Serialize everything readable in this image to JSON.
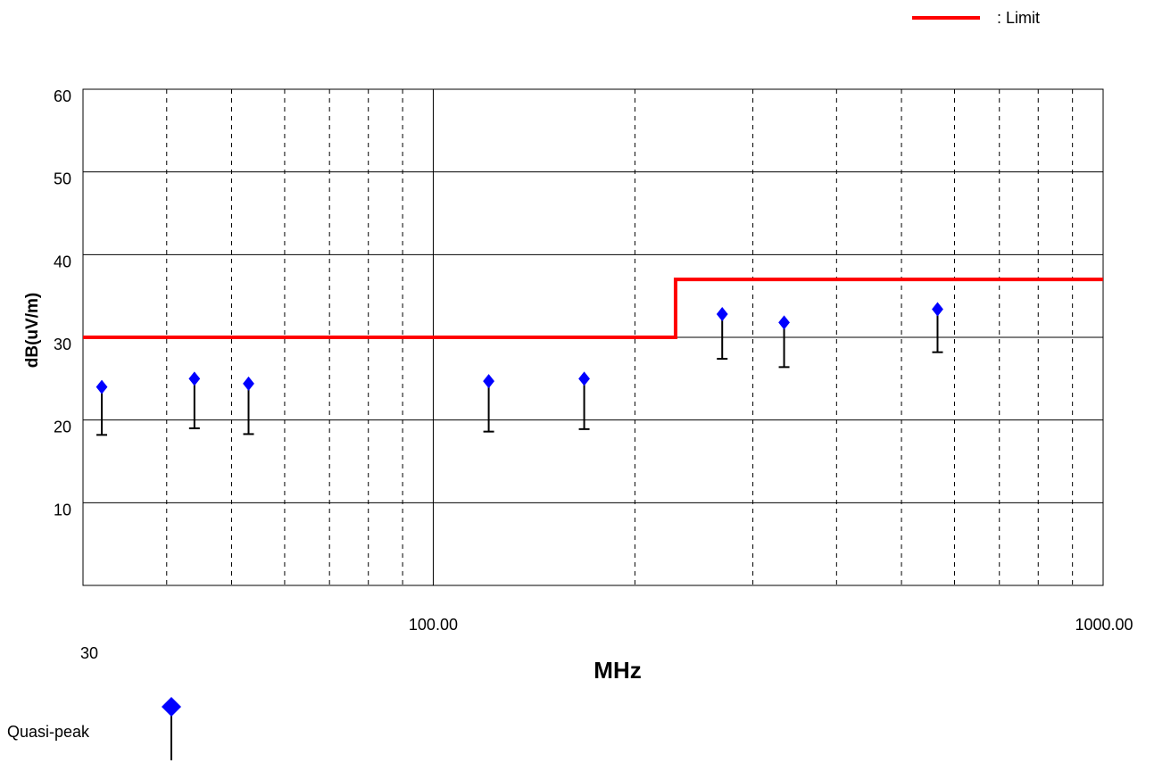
{
  "chart_data": {
    "type": "scatter",
    "xlabel": "MHz",
    "ylabel": "dB(uV/m)",
    "x_scale": "log",
    "xlim": [
      30,
      1000
    ],
    "ylim": [
      0,
      60
    ],
    "y_ticks": [
      {
        "value": 10,
        "label": "10"
      },
      {
        "value": 20,
        "label": "20"
      },
      {
        "value": 30,
        "label": "30"
      },
      {
        "value": 40,
        "label": "40"
      },
      {
        "value": 50,
        "label": "50"
      },
      {
        "value": 60,
        "label": "60"
      }
    ],
    "x_ticks": [
      {
        "value": 30,
        "label": "30"
      },
      {
        "value": 100,
        "label": "100.00"
      },
      {
        "value": 1000,
        "label": "1000.00"
      }
    ],
    "x_minor_gridlines": [
      40,
      50,
      60,
      70,
      80,
      90,
      200,
      300,
      400,
      500,
      600,
      700,
      800,
      900
    ],
    "legend": {
      "position": "top-right",
      "limit_label": ": Limit",
      "quasi_peak_label": "Quasi-peak"
    },
    "limit_line": {
      "name": "Limit",
      "color": "#ff0000",
      "segments": [
        {
          "x_start": 30,
          "x_end": 230,
          "y": 30
        },
        {
          "x_start": 230,
          "x_end": 1000,
          "y": 37
        }
      ]
    },
    "series": [
      {
        "name": "Quasi-peak",
        "color": "#0000ff",
        "points": [
          {
            "x": 32,
            "y": 24.0,
            "y_low": 18.2
          },
          {
            "x": 44,
            "y": 25.0,
            "y_low": 19.0
          },
          {
            "x": 53,
            "y": 24.4,
            "y_low": 18.3
          },
          {
            "x": 121,
            "y": 24.7,
            "y_low": 18.6
          },
          {
            "x": 168,
            "y": 25.0,
            "y_low": 18.9
          },
          {
            "x": 270,
            "y": 32.8,
            "y_low": 27.4
          },
          {
            "x": 334,
            "y": 31.8,
            "y_low": 26.4
          },
          {
            "x": 566,
            "y": 33.4,
            "y_low": 28.2
          }
        ]
      }
    ]
  }
}
